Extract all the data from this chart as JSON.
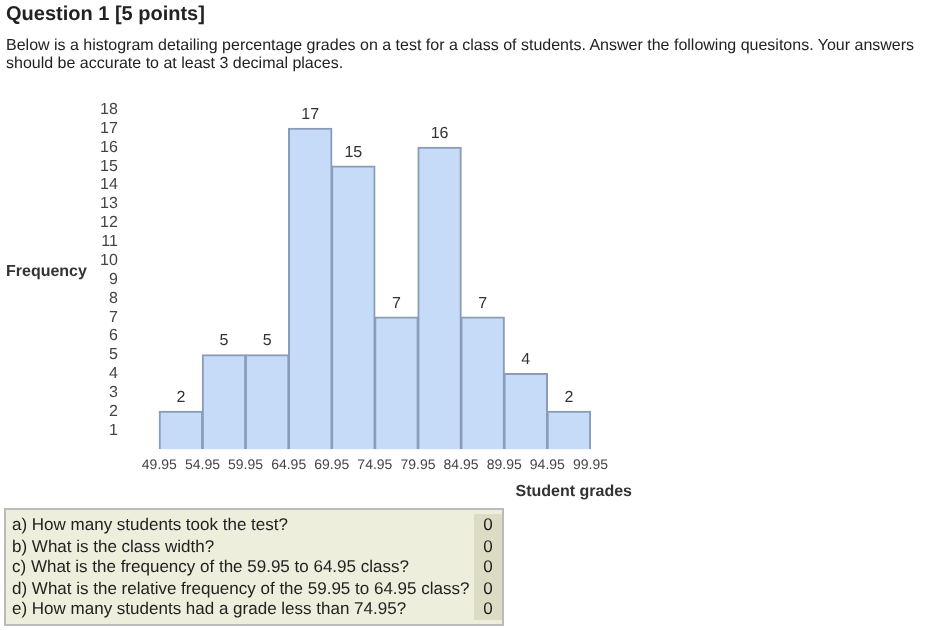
{
  "chart_data": {
    "type": "histogram",
    "title": "Question 1 [5 points]",
    "subtitle": "Below is a histogram detailing percentage grades on a test for a class of students. Answer the following quesitons. Your answers should be accurate to at least 3 decimal places.",
    "xlabel": "Student grades",
    "ylabel": "Frequency",
    "bins": [
      49.95,
      54.95,
      59.95,
      64.95,
      69.95,
      74.95,
      79.95,
      84.95,
      89.95,
      94.95,
      99.95
    ],
    "values": [
      2,
      5,
      5,
      17,
      15,
      7,
      16,
      7,
      4,
      2
    ],
    "color": "#c5dbf8",
    "xlim": [
      49.95,
      99.95
    ],
    "xticks": [
      49.95,
      54.95,
      59.95,
      64.95,
      69.95,
      74.95,
      79.95,
      84.95,
      89.95,
      94.95,
      99.95
    ],
    "ylim": [
      0,
      18
    ],
    "yticks": [
      1,
      2,
      3,
      4,
      5,
      6,
      7,
      8,
      9,
      10,
      11,
      12,
      13,
      14,
      15,
      16,
      17,
      18
    ],
    "data_labels": true,
    "grid": false,
    "legend": false,
    "annotations": [
      "a) How many students took the test?",
      "0",
      "b) What is the class width?",
      "0",
      "c) What is the frequency of the 59.95 to 64.95 class?",
      "0",
      "d) What is the relative frequency of the 59.95 to 64.95 class?",
      "0",
      "e) How many students had a grade less than 74.95?",
      "0"
    ]
  }
}
